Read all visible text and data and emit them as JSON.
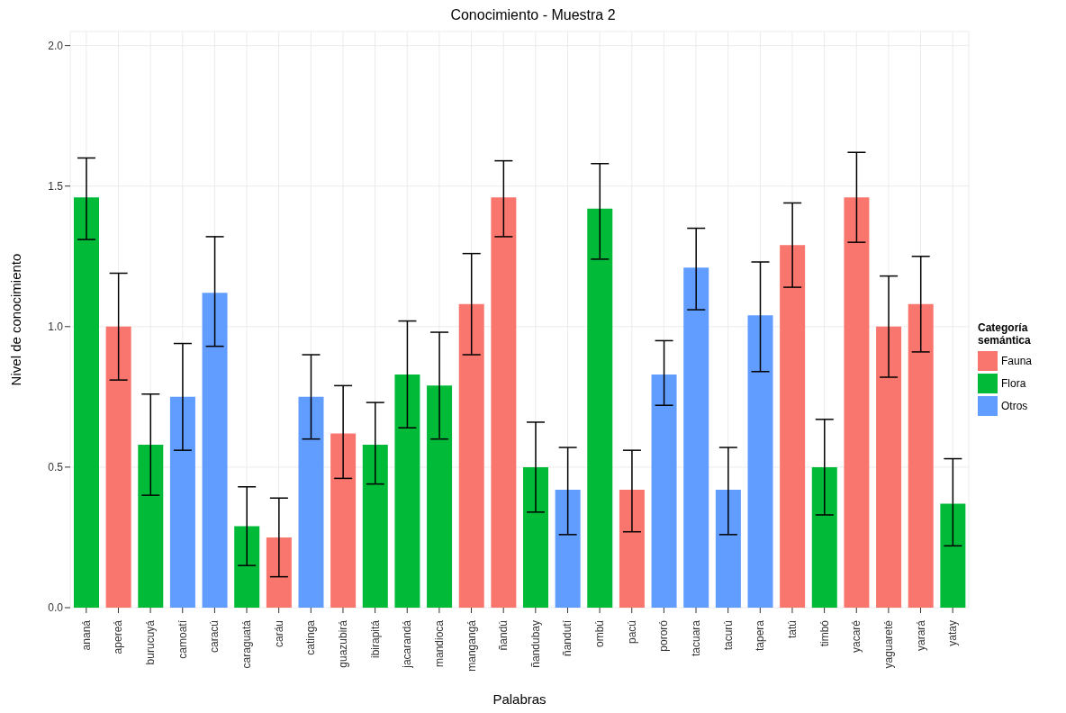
{
  "chart_data": {
    "type": "bar",
    "title": "Conocimiento - Muestra 2",
    "xlabel": "Palabras",
    "ylabel": "Nivel de conocimiento",
    "legend_title": "Categoría semántica",
    "categories": [
      "ananá",
      "apereá",
      "burucuyá",
      "camoatí",
      "caracú",
      "caraguatá",
      "caráu",
      "catinga",
      "guazubirá",
      "ibirapitá",
      "jacarandá",
      "mandioca",
      "mangangá",
      "ñandú",
      "ñandubay",
      "ñandutí",
      "ombú",
      "pacú",
      "pororó",
      "tacuara",
      "tacurú",
      "tapera",
      "tatú",
      "timbó",
      "yacaré",
      "yaguareté",
      "yarará",
      "yatay"
    ],
    "stacked": true,
    "series": [
      {
        "name": "Fauna",
        "color": "#f8766d",
        "values": [
          null,
          1.0,
          null,
          null,
          null,
          null,
          0.25,
          null,
          0.62,
          null,
          null,
          null,
          1.08,
          1.46,
          null,
          null,
          null,
          0.42,
          null,
          null,
          null,
          null,
          1.29,
          null,
          1.46,
          1.0,
          1.08,
          null
        ],
        "errors": [
          null,
          [
            0.81,
            1.19
          ],
          null,
          null,
          null,
          null,
          [
            0.11,
            0.39
          ],
          null,
          [
            0.46,
            0.79
          ],
          null,
          null,
          null,
          [
            0.9,
            1.26
          ],
          [
            1.32,
            1.59
          ],
          null,
          null,
          null,
          [
            0.27,
            0.56
          ],
          null,
          null,
          null,
          null,
          [
            1.14,
            1.44
          ],
          null,
          [
            1.3,
            1.62
          ],
          [
            0.82,
            1.18
          ],
          [
            0.91,
            1.25
          ],
          null
        ]
      },
      {
        "name": "Flora",
        "color": "#00ba38",
        "values": [
          1.46,
          null,
          0.58,
          null,
          null,
          0.29,
          null,
          null,
          null,
          0.58,
          0.83,
          0.79,
          null,
          null,
          0.5,
          null,
          1.42,
          null,
          null,
          null,
          null,
          null,
          null,
          0.5,
          null,
          null,
          null,
          0.37
        ],
        "errors": [
          [
            1.31,
            1.6
          ],
          null,
          [
            0.4,
            0.76
          ],
          null,
          null,
          [
            0.15,
            0.43
          ],
          null,
          null,
          null,
          [
            0.44,
            0.73
          ],
          [
            0.64,
            1.02
          ],
          [
            0.6,
            0.98
          ],
          null,
          null,
          [
            0.34,
            0.66
          ],
          null,
          [
            1.24,
            1.58
          ],
          null,
          null,
          null,
          null,
          null,
          null,
          [
            0.33,
            0.67
          ],
          null,
          null,
          null,
          [
            0.22,
            0.53
          ]
        ]
      },
      {
        "name": "Otros",
        "color": "#619cff",
        "values": [
          null,
          null,
          null,
          0.75,
          1.12,
          null,
          null,
          0.75,
          null,
          null,
          null,
          null,
          null,
          null,
          null,
          0.42,
          null,
          null,
          0.83,
          1.21,
          0.42,
          1.04,
          null,
          null,
          null,
          null,
          null,
          null
        ],
        "errors": [
          null,
          null,
          null,
          [
            0.56,
            0.94
          ],
          [
            0.93,
            1.32
          ],
          null,
          null,
          [
            0.6,
            0.9
          ],
          null,
          null,
          null,
          null,
          null,
          null,
          null,
          [
            0.26,
            0.57
          ],
          null,
          null,
          [
            0.72,
            0.95
          ],
          [
            1.06,
            1.35
          ],
          [
            0.26,
            0.57
          ],
          [
            0.84,
            1.23
          ],
          null,
          null,
          null,
          null,
          null,
          null
        ]
      }
    ],
    "ylim": [
      0,
      2.05
    ],
    "yticks": [
      {
        "value": 0,
        "label": "0.0"
      },
      {
        "value": 0.5,
        "label": "0.5"
      },
      {
        "value": 1,
        "label": "1.0"
      },
      {
        "value": 1.5,
        "label": "1.5"
      },
      {
        "value": 2,
        "label": "2.0"
      }
    ],
    "grid": true,
    "legend": "right"
  }
}
